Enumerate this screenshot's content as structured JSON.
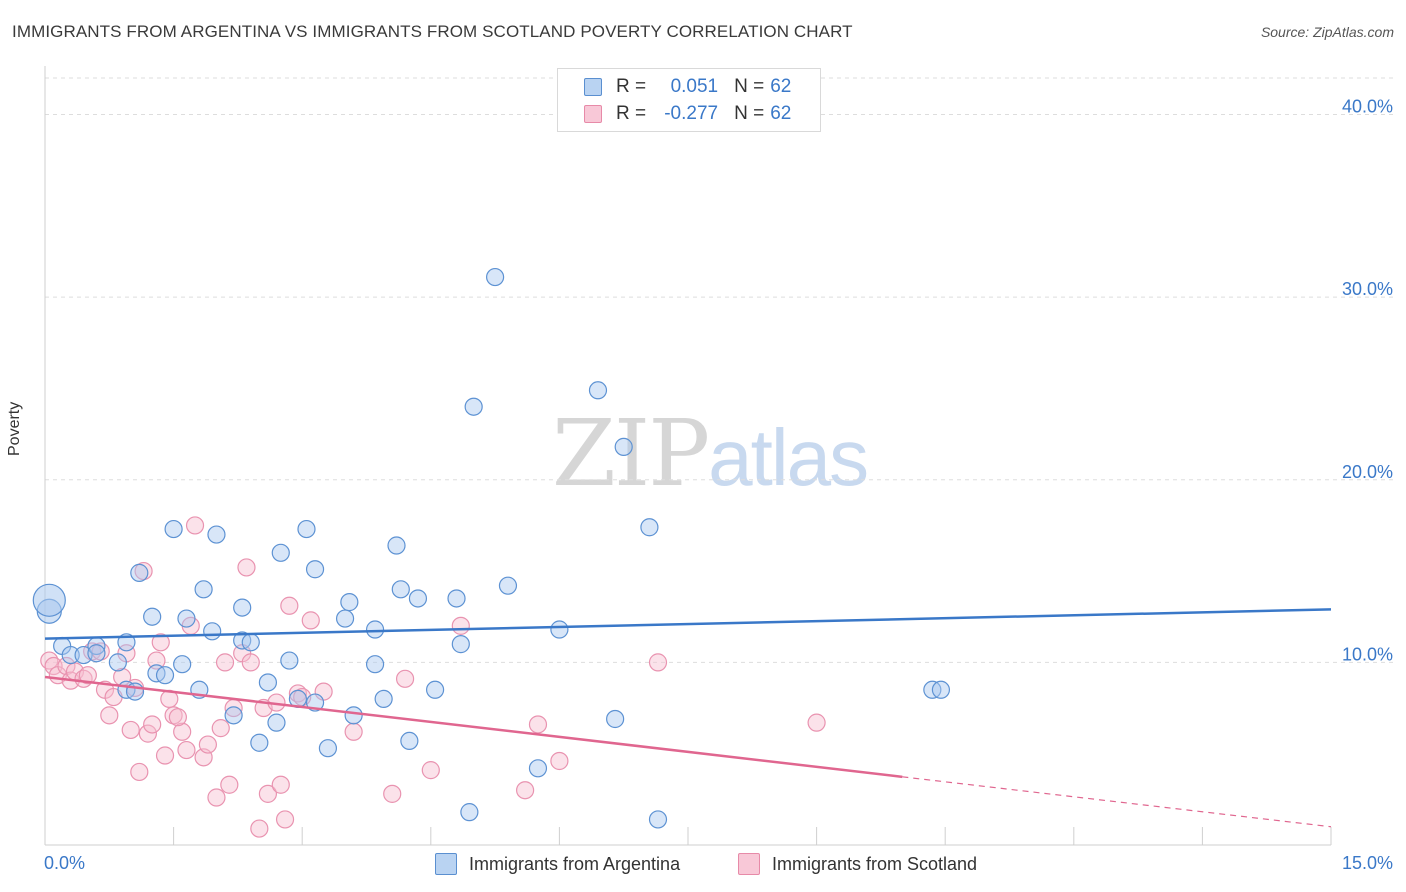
{
  "title": "IMMIGRANTS FROM ARGENTINA VS IMMIGRANTS FROM SCOTLAND POVERTY CORRELATION CHART",
  "source": "Source: ZipAtlas.com",
  "watermark": {
    "zip": "ZIP",
    "atlas": "atlas"
  },
  "colors": {
    "argentina": "#3a78c8",
    "argentina_fill": "#a9c8ef",
    "scotland": "#e0668f",
    "scotland_fill": "#f6bfd0",
    "grid": "#dddddd",
    "tick_label": "#3a78c8"
  },
  "legend": {
    "rows": [
      {
        "r_label": "R =",
        "r_value": "0.051",
        "n_label": "N =",
        "n_value": "62"
      },
      {
        "r_label": "R =",
        "r_value": "-0.277",
        "n_label": "N =",
        "n_value": "62"
      }
    ]
  },
  "chart_data": {
    "type": "scatter",
    "title": "IMMIGRANTS FROM ARGENTINA VS IMMIGRANTS FROM SCOTLAND POVERTY CORRELATION CHART",
    "xlabel": "",
    "ylabel": "Poverty",
    "xlim": [
      0,
      15
    ],
    "ylim": [
      0,
      42
    ],
    "x_tick_labels": [
      "0.0%",
      "15.0%"
    ],
    "y_ticks": [
      10,
      20,
      30,
      40
    ],
    "y_tick_labels": [
      "10.0%",
      "20.0%",
      "30.0%",
      "40.0%"
    ],
    "grid": true,
    "legend_position": "top-center",
    "series": [
      {
        "name": "Immigrants from Argentina",
        "r": 0.051,
        "n": 62,
        "trend": {
          "x0": 0,
          "y0": 11.3,
          "x1": 15,
          "y1": 12.9,
          "dashed_from": null
        },
        "points": [
          [
            0.05,
            12.8
          ],
          [
            0.05,
            13.4
          ],
          [
            0.2,
            10.9
          ],
          [
            0.3,
            10.4
          ],
          [
            0.45,
            10.4
          ],
          [
            0.6,
            10.9
          ],
          [
            0.6,
            10.5
          ],
          [
            0.85,
            10.0
          ],
          [
            0.95,
            11.1
          ],
          [
            0.95,
            8.5
          ],
          [
            1.05,
            8.4
          ],
          [
            1.1,
            14.9
          ],
          [
            1.25,
            12.5
          ],
          [
            1.3,
            9.4
          ],
          [
            1.4,
            9.3
          ],
          [
            1.5,
            17.3
          ],
          [
            1.6,
            9.9
          ],
          [
            1.65,
            12.4
          ],
          [
            1.8,
            8.5
          ],
          [
            1.85,
            14.0
          ],
          [
            1.95,
            11.7
          ],
          [
            2.0,
            17.0
          ],
          [
            2.2,
            7.1
          ],
          [
            2.3,
            11.2
          ],
          [
            2.3,
            13.0
          ],
          [
            2.4,
            11.1
          ],
          [
            2.5,
            5.6
          ],
          [
            2.6,
            8.9
          ],
          [
            2.7,
            6.7
          ],
          [
            2.75,
            16.0
          ],
          [
            2.85,
            10.1
          ],
          [
            2.95,
            8.0
          ],
          [
            3.05,
            17.3
          ],
          [
            3.15,
            7.8
          ],
          [
            3.15,
            15.1
          ],
          [
            3.3,
            5.3
          ],
          [
            3.5,
            12.4
          ],
          [
            3.55,
            13.3
          ],
          [
            3.6,
            7.1
          ],
          [
            3.85,
            9.9
          ],
          [
            3.85,
            11.8
          ],
          [
            3.95,
            8.0
          ],
          [
            4.1,
            16.4
          ],
          [
            4.15,
            14.0
          ],
          [
            4.25,
            5.7
          ],
          [
            4.35,
            13.5
          ],
          [
            4.55,
            8.5
          ],
          [
            4.8,
            13.5
          ],
          [
            4.85,
            11.0
          ],
          [
            4.95,
            1.8
          ],
          [
            5.0,
            24.0
          ],
          [
            5.25,
            31.1
          ],
          [
            5.4,
            14.2
          ],
          [
            5.75,
            4.2
          ],
          [
            6.0,
            11.8
          ],
          [
            6.45,
            24.9
          ],
          [
            6.65,
            6.9
          ],
          [
            6.75,
            21.8
          ],
          [
            7.05,
            17.4
          ],
          [
            7.15,
            1.4
          ],
          [
            10.35,
            8.5
          ],
          [
            10.45,
            8.5
          ]
        ]
      },
      {
        "name": "Immigrants from Scotland",
        "r": -0.277,
        "n": 62,
        "trend": {
          "x0": 0,
          "y0": 9.2,
          "x1": 15,
          "y1": 1.0,
          "dashed_from": 10.0
        },
        "points": [
          [
            0.05,
            10.1
          ],
          [
            0.1,
            9.8
          ],
          [
            0.15,
            9.3
          ],
          [
            0.25,
            9.8
          ],
          [
            0.3,
            9.0
          ],
          [
            0.35,
            9.5
          ],
          [
            0.45,
            9.1
          ],
          [
            0.5,
            9.3
          ],
          [
            0.55,
            10.6
          ],
          [
            0.65,
            10.6
          ],
          [
            0.7,
            8.5
          ],
          [
            0.75,
            7.1
          ],
          [
            0.8,
            8.1
          ],
          [
            0.9,
            9.2
          ],
          [
            0.95,
            10.5
          ],
          [
            1.0,
            6.3
          ],
          [
            1.05,
            8.6
          ],
          [
            1.1,
            4.0
          ],
          [
            1.15,
            15.0
          ],
          [
            1.2,
            6.1
          ],
          [
            1.25,
            6.6
          ],
          [
            1.3,
            10.1
          ],
          [
            1.35,
            11.1
          ],
          [
            1.4,
            4.9
          ],
          [
            1.45,
            8.0
          ],
          [
            1.5,
            7.1
          ],
          [
            1.6,
            6.2
          ],
          [
            1.65,
            5.2
          ],
          [
            1.7,
            12.0
          ],
          [
            1.75,
            17.5
          ],
          [
            1.85,
            4.8
          ],
          [
            1.9,
            5.5
          ],
          [
            2.0,
            2.6
          ],
          [
            2.05,
            6.4
          ],
          [
            2.1,
            10.0
          ],
          [
            2.15,
            3.3
          ],
          [
            2.2,
            7.5
          ],
          [
            2.3,
            10.5
          ],
          [
            2.35,
            15.2
          ],
          [
            2.4,
            10.0
          ],
          [
            2.5,
            0.9
          ],
          [
            2.55,
            7.5
          ],
          [
            2.6,
            2.8
          ],
          [
            2.7,
            7.8
          ],
          [
            2.75,
            3.3
          ],
          [
            2.8,
            1.4
          ],
          [
            2.85,
            13.1
          ],
          [
            2.95,
            8.3
          ],
          [
            3.1,
            12.3
          ],
          [
            3.25,
            8.4
          ],
          [
            3.6,
            6.2
          ],
          [
            4.05,
            2.8
          ],
          [
            4.2,
            9.1
          ],
          [
            4.5,
            4.1
          ],
          [
            4.85,
            12.0
          ],
          [
            5.6,
            3.0
          ],
          [
            5.75,
            6.6
          ],
          [
            6.0,
            4.6
          ],
          [
            7.15,
            10.0
          ],
          [
            9.0,
            6.7
          ],
          [
            3.0,
            8.1
          ],
          [
            1.55,
            7.0
          ]
        ]
      }
    ]
  },
  "bottom_legend": {
    "argentina_label": "Immigrants from Argentina",
    "scotland_label": "Immigrants from Scotland"
  },
  "axis": {
    "ylabel": "Poverty",
    "x_min_label": "0.0%",
    "x_max_label": "15.0%",
    "y_labels": [
      "10.0%",
      "20.0%",
      "30.0%",
      "40.0%"
    ]
  }
}
